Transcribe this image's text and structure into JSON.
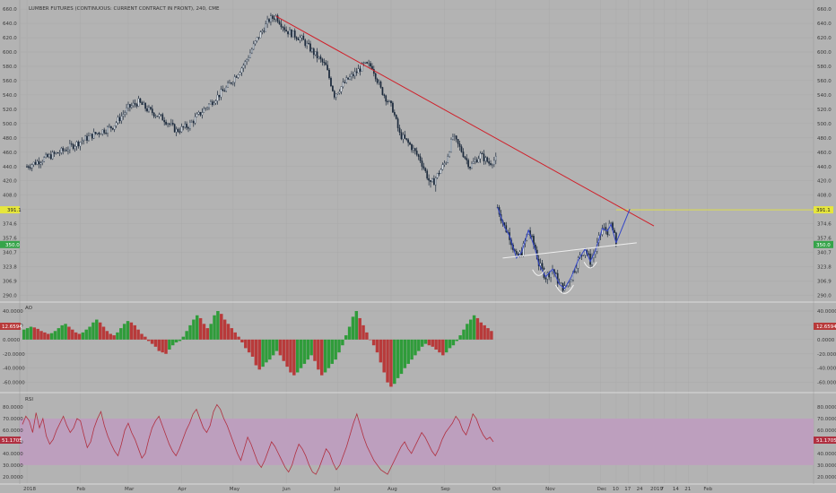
{
  "chart": {
    "title": "LUMBER FUTURES (CONTINUOUS: CURRENT CONTRACT IN FRONT), 240, CME",
    "pane_labels": {
      "ao": "AO",
      "rsi": "RSI"
    }
  },
  "price_tags": {
    "resistance": "391.1",
    "current": "350.0",
    "ao_value": "12.6594",
    "rsi_value": "51.1705"
  },
  "colors": {
    "background": "#b3b3b3",
    "grid": "#aaaaaa",
    "candle": "#1c2a3c",
    "trendline": "#d0202a",
    "pattern": "#3446c8",
    "neckline": "#eeeeee",
    "resistance": "#e6e63c",
    "current_tag": "#36a44a",
    "ao_up": "#2f9c3a",
    "ao_down": "#b83a3a",
    "rsi_line": "#b03040",
    "rsi_band": "#bd9fbe"
  },
  "chart_data": [
    {
      "type": "candlestick",
      "y_ticks": [
        290.0,
        306.9,
        323.8,
        340.7,
        357.6,
        374.6,
        391.5,
        408.0,
        420.0,
        440.0,
        460.0,
        480.0,
        500.0,
        520.0,
        540.0,
        560.0,
        580.0,
        600.0,
        620.0,
        640.0,
        660.0
      ],
      "y_tick_labels": [
        "290.0",
        "306.9",
        "323.8",
        "340.7",
        "357.6",
        "374.6",
        "391.5",
        "408.0",
        "420.0",
        "440.0",
        "460.0",
        "480.0",
        "500.0",
        "520.0",
        "540.0",
        "560.0",
        "580.0",
        "600.0",
        "620.0",
        "640.0",
        "660.0"
      ],
      "x_labels": [
        "2018",
        "Feb",
        "Mar",
        "Apr",
        "May",
        "Jun",
        "Jul",
        "Aug",
        "Sep",
        "Oct",
        "Nov",
        "Dec",
        "10",
        "17",
        "24",
        "2019",
        "7",
        "14",
        "21",
        "Feb"
      ],
      "series_2018": [
        [
          "2018-01-01",
          440
        ],
        [
          "2018-01-10",
          450
        ],
        [
          "2018-01-22",
          462
        ],
        [
          "2018-02-02",
          476
        ],
        [
          "2018-02-10",
          486
        ],
        [
          "2018-02-20",
          496
        ],
        [
          "2018-03-01",
          522
        ],
        [
          "2018-03-07",
          530
        ],
        [
          "2018-03-12",
          520
        ],
        [
          "2018-03-22",
          506
        ],
        [
          "2018-03-29",
          490
        ],
        [
          "2018-04-05",
          497
        ],
        [
          "2018-04-15",
          522
        ],
        [
          "2018-04-28",
          552
        ],
        [
          "2018-05-08",
          585
        ],
        [
          "2018-05-15",
          618
        ],
        [
          "2018-05-22",
          645
        ],
        [
          "2018-05-26",
          650
        ],
        [
          "2018-06-01",
          630
        ],
        [
          "2018-06-10",
          618
        ],
        [
          "2018-06-18",
          596
        ],
        [
          "2018-06-24",
          580
        ],
        [
          "2018-06-29",
          540
        ],
        [
          "2018-07-06",
          560
        ],
        [
          "2018-07-12",
          572
        ],
        [
          "2018-07-16",
          582
        ],
        [
          "2018-07-21",
          580
        ],
        [
          "2018-07-26",
          548
        ],
        [
          "2018-08-02",
          520
        ],
        [
          "2018-08-06",
          485
        ],
        [
          "2018-08-12",
          470
        ],
        [
          "2018-08-18",
          450
        ],
        [
          "2018-08-24",
          415
        ],
        [
          "2018-08-28",
          428
        ],
        [
          "2018-09-02",
          448
        ],
        [
          "2018-09-06",
          482
        ],
        [
          "2018-09-11",
          462
        ],
        [
          "2018-09-16",
          440
        ],
        [
          "2018-09-22",
          456
        ],
        [
          "2018-09-27",
          445
        ],
        [
          "2018-10-01",
          450
        ]
      ],
      "series_pattern": [
        [
          "2018-10-02",
          394
        ],
        [
          "2018-10-06",
          371
        ],
        [
          "2018-10-09",
          360
        ],
        [
          "2018-10-13",
          334
        ],
        [
          "2018-10-16",
          341
        ],
        [
          "2018-10-20",
          367
        ],
        [
          "2018-10-24",
          344
        ],
        [
          "2018-10-26",
          327
        ],
        [
          "2018-10-30",
          312
        ],
        [
          "2018-11-03",
          321
        ],
        [
          "2018-11-07",
          303
        ],
        [
          "2018-11-10",
          298
        ],
        [
          "2018-11-14",
          312
        ],
        [
          "2018-11-18",
          332
        ],
        [
          "2018-11-22",
          345
        ],
        [
          "2018-11-25",
          330
        ],
        [
          "2018-11-28",
          343
        ],
        [
          "2018-12-02",
          369
        ],
        [
          "2018-12-05",
          366
        ],
        [
          "2018-12-07",
          374
        ],
        [
          "2018-12-10",
          352
        ]
      ],
      "trendline": [
        [
          "2018-05-26",
          650
        ],
        [
          "2019-01-01",
          372
        ]
      ],
      "pattern_projection": [
        [
          "2018-12-10",
          352
        ],
        [
          "2018-12-18",
          392
        ]
      ],
      "neckline": [
        [
          "2018-10-05",
          334
        ],
        [
          "2018-12-22",
          352
        ]
      ],
      "resistance_level": 391.1,
      "current_price": 350.0
    },
    {
      "type": "bar",
      "title": "AO",
      "y_ticks": [
        -60,
        -40,
        -20,
        0,
        20,
        40
      ],
      "y_tick_labels": [
        "-60.0000",
        "-40.0000",
        "-20.0000",
        "0.0000",
        "20.0000",
        "40.0000"
      ],
      "ylim": [
        -68,
        45
      ],
      "last_value": 12.6594,
      "values": [
        14,
        16,
        18,
        17,
        15,
        12,
        10,
        8,
        9,
        12,
        16,
        20,
        22,
        18,
        14,
        10,
        8,
        10,
        14,
        18,
        24,
        28,
        24,
        18,
        12,
        8,
        6,
        10,
        16,
        22,
        26,
        24,
        20,
        14,
        8,
        4,
        -2,
        -6,
        -10,
        -16,
        -18,
        -20,
        -14,
        -8,
        -4,
        -2,
        4,
        12,
        20,
        28,
        34,
        30,
        22,
        16,
        22,
        34,
        40,
        36,
        28,
        22,
        16,
        10,
        4,
        -4,
        -12,
        -18,
        -24,
        -36,
        -42,
        -38,
        -32,
        -28,
        -22,
        -16,
        -22,
        -30,
        -38,
        -46,
        -50,
        -46,
        -40,
        -34,
        -28,
        -22,
        -30,
        -42,
        -50,
        -46,
        -40,
        -34,
        -28,
        -18,
        -8,
        6,
        18,
        32,
        40,
        30,
        20,
        10,
        0,
        -8,
        -18,
        -32,
        -46,
        -60,
        -66,
        -62,
        -54,
        -48,
        -40,
        -34,
        -28,
        -22,
        -16,
        -10,
        -6,
        -8,
        -10,
        -14,
        -18,
        -22,
        -18,
        -12,
        -8,
        -2,
        6,
        14,
        22,
        28,
        34,
        30,
        24,
        20,
        16,
        12
      ]
    },
    {
      "type": "line",
      "title": "RSI",
      "y_ticks": [
        20,
        30,
        40,
        50,
        60,
        70,
        80
      ],
      "y_tick_labels": [
        "20.0000",
        "30.0000",
        "40.0000",
        "50.0000",
        "60.0000",
        "70.0000",
        "80.0000"
      ],
      "ylim": [
        16,
        90
      ],
      "band": [
        30,
        70
      ],
      "last_value": 51.1705,
      "values": [
        65,
        72,
        68,
        58,
        75,
        62,
        70,
        55,
        48,
        52,
        60,
        66,
        72,
        64,
        58,
        62,
        70,
        68,
        56,
        45,
        50,
        62,
        70,
        76,
        64,
        55,
        48,
        42,
        38,
        48,
        60,
        66,
        58,
        52,
        44,
        36,
        40,
        52,
        62,
        68,
        72,
        64,
        56,
        48,
        42,
        38,
        44,
        52,
        60,
        66,
        74,
        78,
        70,
        62,
        58,
        64,
        76,
        82,
        78,
        70,
        64,
        56,
        48,
        40,
        34,
        44,
        54,
        48,
        40,
        32,
        28,
        34,
        42,
        50,
        46,
        40,
        34,
        28,
        24,
        30,
        40,
        48,
        44,
        38,
        30,
        24,
        22,
        28,
        36,
        44,
        40,
        32,
        26,
        30,
        38,
        46,
        56,
        66,
        74,
        64,
        54,
        46,
        40,
        34,
        30,
        26,
        24,
        22,
        28,
        34,
        40,
        46,
        50,
        44,
        40,
        46,
        52,
        58,
        54,
        48,
        42,
        38,
        44,
        52,
        58,
        62,
        66,
        72,
        68,
        60,
        56,
        64,
        74,
        70,
        62,
        56,
        52,
        54,
        50
      ]
    }
  ]
}
